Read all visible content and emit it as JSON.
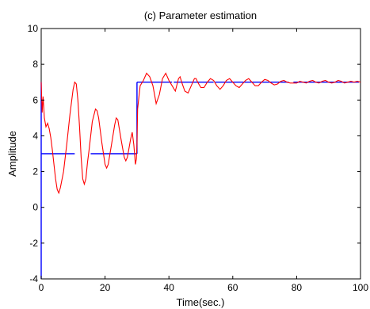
{
  "chart_data": {
    "type": "line",
    "title": "(c) Parameter estimation",
    "xlabel": "Time(sec.)",
    "ylabel": "Amplitude",
    "xlim": [
      0,
      100
    ],
    "ylim": [
      -4,
      10
    ],
    "xticks": [
      "0",
      "20",
      "40",
      "60",
      "80",
      "100"
    ],
    "yticks": [
      "-4",
      "-2",
      "0",
      "2",
      "4",
      "6",
      "8",
      "10"
    ],
    "grid": false,
    "legend": "none",
    "colors": {
      "true_parameter": "#0000ff",
      "estimate": "#ff0000",
      "axes": "#000000"
    },
    "series": [
      {
        "style": "solid",
        "segments": [
          [
            [
              0,
              3
            ],
            [
              10.5,
              3
            ]
          ],
          [
            [
              15.5,
              3
            ],
            [
              29.8,
              3
            ]
          ],
          [
            [
              30,
              7
            ],
            [
              41,
              7
            ]
          ],
          [
            [
              41.5,
              7
            ],
            [
              54,
              7
            ]
          ],
          [
            [
              54.5,
              7
            ],
            [
              77.5,
              7
            ]
          ],
          [
            [
              79,
              7
            ],
            [
              99.5,
              7
            ]
          ]
        ]
      },
      {
        "style": "solid",
        "points": [
          [
            0,
            7.0
          ],
          [
            0.3,
            5.3
          ],
          [
            0.6,
            6.2
          ],
          [
            1.0,
            5.0
          ],
          [
            1.5,
            4.5
          ],
          [
            2.0,
            4.7
          ],
          [
            2.5,
            4.4
          ],
          [
            3.0,
            3.9
          ],
          [
            3.5,
            3.2
          ],
          [
            4.0,
            2.4
          ],
          [
            4.5,
            1.6
          ],
          [
            5.0,
            1.0
          ],
          [
            5.5,
            0.8
          ],
          [
            6.0,
            1.1
          ],
          [
            7.0,
            2.0
          ],
          [
            8.0,
            3.5
          ],
          [
            9.0,
            5.2
          ],
          [
            10.0,
            6.6
          ],
          [
            10.5,
            7.0
          ],
          [
            11.0,
            6.9
          ],
          [
            11.5,
            6.0
          ],
          [
            12.0,
            4.5
          ],
          [
            12.5,
            2.8
          ],
          [
            13.0,
            1.6
          ],
          [
            13.5,
            1.3
          ],
          [
            14.0,
            1.6
          ],
          [
            14.5,
            2.5
          ],
          [
            15.0,
            3.2
          ],
          [
            16.0,
            4.8
          ],
          [
            17.0,
            5.5
          ],
          [
            17.5,
            5.4
          ],
          [
            18.0,
            5.0
          ],
          [
            19.0,
            3.6
          ],
          [
            20.0,
            2.4
          ],
          [
            20.5,
            2.2
          ],
          [
            21.0,
            2.4
          ],
          [
            22.0,
            3.5
          ],
          [
            23.0,
            4.6
          ],
          [
            23.5,
            5.0
          ],
          [
            24.0,
            4.9
          ],
          [
            25.0,
            3.8
          ],
          [
            26.0,
            2.8
          ],
          [
            26.5,
            2.6
          ],
          [
            27.0,
            2.8
          ],
          [
            28.0,
            3.8
          ],
          [
            28.5,
            4.2
          ],
          [
            29.0,
            3.5
          ],
          [
            29.5,
            2.4
          ],
          [
            29.8,
            2.7
          ],
          [
            30.0,
            3.5
          ],
          [
            30.2,
            5.5
          ],
          [
            30.5,
            6.0
          ],
          [
            31.0,
            6.8
          ],
          [
            32.0,
            7.1
          ],
          [
            33.0,
            7.5
          ],
          [
            34.0,
            7.3
          ],
          [
            35.0,
            6.8
          ],
          [
            35.5,
            6.3
          ],
          [
            36.0,
            5.8
          ],
          [
            37.0,
            6.3
          ],
          [
            38.0,
            7.2
          ],
          [
            39.0,
            7.5
          ],
          [
            40.0,
            7.1
          ],
          [
            41.0,
            6.8
          ],
          [
            42.0,
            6.5
          ],
          [
            43.0,
            7.2
          ],
          [
            43.5,
            7.3
          ],
          [
            44.0,
            7.0
          ],
          [
            45.0,
            6.5
          ],
          [
            46.0,
            6.4
          ],
          [
            47.0,
            6.8
          ],
          [
            48.0,
            7.2
          ],
          [
            48.5,
            7.2
          ],
          [
            49.0,
            7.0
          ],
          [
            50.0,
            6.7
          ],
          [
            51.0,
            6.7
          ],
          [
            52.0,
            7.0
          ],
          [
            53.0,
            7.2
          ],
          [
            54.0,
            7.1
          ],
          [
            55.0,
            6.8
          ],
          [
            56.0,
            6.6
          ],
          [
            57.0,
            6.8
          ],
          [
            58.0,
            7.1
          ],
          [
            59.0,
            7.2
          ],
          [
            60.0,
            7.0
          ],
          [
            61.0,
            6.8
          ],
          [
            62.0,
            6.7
          ],
          [
            63.0,
            6.9
          ],
          [
            64.0,
            7.1
          ],
          [
            65.0,
            7.2
          ],
          [
            66.0,
            7.0
          ],
          [
            67.0,
            6.8
          ],
          [
            68.0,
            6.8
          ],
          [
            69.0,
            7.0
          ],
          [
            70.0,
            7.15
          ],
          [
            71.0,
            7.1
          ],
          [
            72.0,
            6.95
          ],
          [
            73.0,
            6.85
          ],
          [
            74.0,
            6.9
          ],
          [
            75.0,
            7.05
          ],
          [
            76.0,
            7.1
          ],
          [
            77.0,
            7.0
          ],
          [
            78.0,
            6.95
          ],
          [
            80.0,
            6.95
          ],
          [
            81.0,
            7.05
          ],
          [
            82.0,
            7.0
          ],
          [
            83.0,
            6.95
          ],
          [
            84.0,
            7.05
          ],
          [
            85.0,
            7.1
          ],
          [
            86.0,
            7.0
          ],
          [
            87.0,
            6.95
          ],
          [
            88.0,
            7.05
          ],
          [
            89.0,
            7.1
          ],
          [
            90.0,
            7.0
          ],
          [
            91.0,
            6.95
          ],
          [
            92.0,
            7.0
          ],
          [
            93.0,
            7.1
          ],
          [
            94.0,
            7.05
          ],
          [
            95.0,
            6.95
          ],
          [
            96.0,
            7.0
          ],
          [
            97.0,
            7.05
          ],
          [
            98.0,
            7.0
          ],
          [
            99.0,
            7.05
          ],
          [
            100.0,
            7.0
          ]
        ]
      }
    ]
  }
}
